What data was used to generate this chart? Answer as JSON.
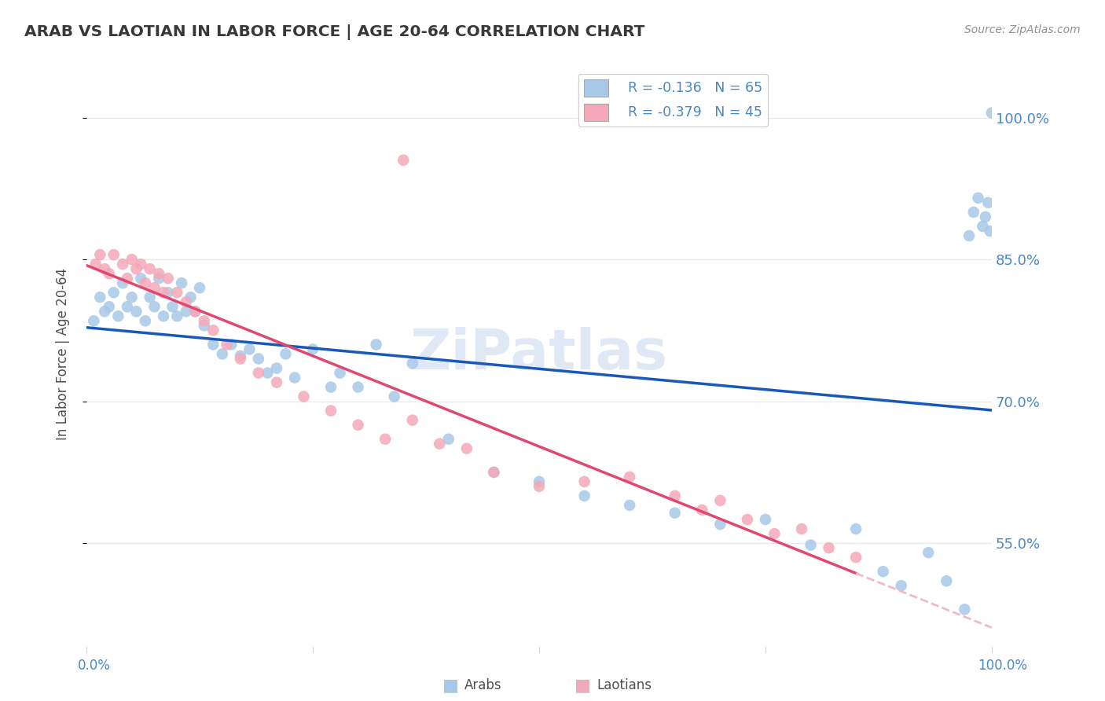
{
  "title": "ARAB VS LAOTIAN IN LABOR FORCE | AGE 20-64 CORRELATION CHART",
  "source": "Source: ZipAtlas.com",
  "ylabel": "In Labor Force | Age 20-64",
  "xlim": [
    0.0,
    1.0
  ],
  "ylim_low": 0.44,
  "ylim_high": 1.06,
  "yticks": [
    0.55,
    0.7,
    0.85,
    1.0
  ],
  "ytick_labels": [
    "55.0%",
    "70.0%",
    "85.0%",
    "100.0%"
  ],
  "arab_R": "-0.136",
  "arab_N": "65",
  "laotian_R": "-0.379",
  "laotian_N": "45",
  "arab_color": "#a8c8e8",
  "laotian_color": "#f4a8b8",
  "arab_line_color": "#1858b8",
  "laotian_line_color": "#e04870",
  "laotian_dash_color": "#f0b8cc",
  "background_color": "#ffffff",
  "grid_color": "#e8e8e8",
  "title_color": "#383838",
  "axis_label_color": "#4888c8",
  "watermark": "ZiPatlas",
  "arab_scatter_x": [
    0.008,
    0.015,
    0.02,
    0.025,
    0.03,
    0.035,
    0.04,
    0.045,
    0.05,
    0.055,
    0.06,
    0.065,
    0.07,
    0.075,
    0.08,
    0.085,
    0.09,
    0.095,
    0.1,
    0.105,
    0.11,
    0.115,
    0.12,
    0.125,
    0.13,
    0.14,
    0.15,
    0.16,
    0.17,
    0.18,
    0.19,
    0.2,
    0.21,
    0.22,
    0.23,
    0.25,
    0.27,
    0.28,
    0.3,
    0.32,
    0.34,
    0.36,
    0.4,
    0.45,
    0.5,
    0.55,
    0.6,
    0.65,
    0.7,
    0.75,
    0.8,
    0.85,
    0.88,
    0.9,
    0.93,
    0.95,
    0.97,
    0.975,
    0.98,
    0.985,
    0.99,
    0.993,
    0.996,
    0.998,
    1.0
  ],
  "arab_scatter_y": [
    0.785,
    0.81,
    0.795,
    0.8,
    0.815,
    0.79,
    0.825,
    0.8,
    0.81,
    0.795,
    0.83,
    0.785,
    0.81,
    0.8,
    0.83,
    0.79,
    0.815,
    0.8,
    0.79,
    0.825,
    0.795,
    0.81,
    0.795,
    0.82,
    0.78,
    0.76,
    0.75,
    0.76,
    0.748,
    0.755,
    0.745,
    0.73,
    0.735,
    0.75,
    0.725,
    0.755,
    0.715,
    0.73,
    0.715,
    0.76,
    0.705,
    0.74,
    0.66,
    0.625,
    0.615,
    0.6,
    0.59,
    0.582,
    0.57,
    0.575,
    0.548,
    0.565,
    0.52,
    0.505,
    0.54,
    0.51,
    0.48,
    0.875,
    0.9,
    0.915,
    0.885,
    0.895,
    0.91,
    0.88,
    1.005
  ],
  "laotian_scatter_x": [
    0.01,
    0.015,
    0.02,
    0.025,
    0.03,
    0.04,
    0.045,
    0.05,
    0.055,
    0.06,
    0.065,
    0.07,
    0.075,
    0.08,
    0.085,
    0.09,
    0.1,
    0.11,
    0.12,
    0.13,
    0.14,
    0.155,
    0.17,
    0.19,
    0.21,
    0.24,
    0.27,
    0.3,
    0.33,
    0.36,
    0.39,
    0.42,
    0.45,
    0.5,
    0.55,
    0.6,
    0.65,
    0.68,
    0.7,
    0.73,
    0.76,
    0.79,
    0.82,
    0.85,
    0.35
  ],
  "laotian_scatter_y": [
    0.845,
    0.855,
    0.84,
    0.835,
    0.855,
    0.845,
    0.83,
    0.85,
    0.84,
    0.845,
    0.825,
    0.84,
    0.82,
    0.835,
    0.815,
    0.83,
    0.815,
    0.805,
    0.795,
    0.785,
    0.775,
    0.76,
    0.745,
    0.73,
    0.72,
    0.705,
    0.69,
    0.675,
    0.66,
    0.68,
    0.655,
    0.65,
    0.625,
    0.61,
    0.615,
    0.62,
    0.6,
    0.585,
    0.595,
    0.575,
    0.56,
    0.565,
    0.545,
    0.535,
    0.955
  ]
}
